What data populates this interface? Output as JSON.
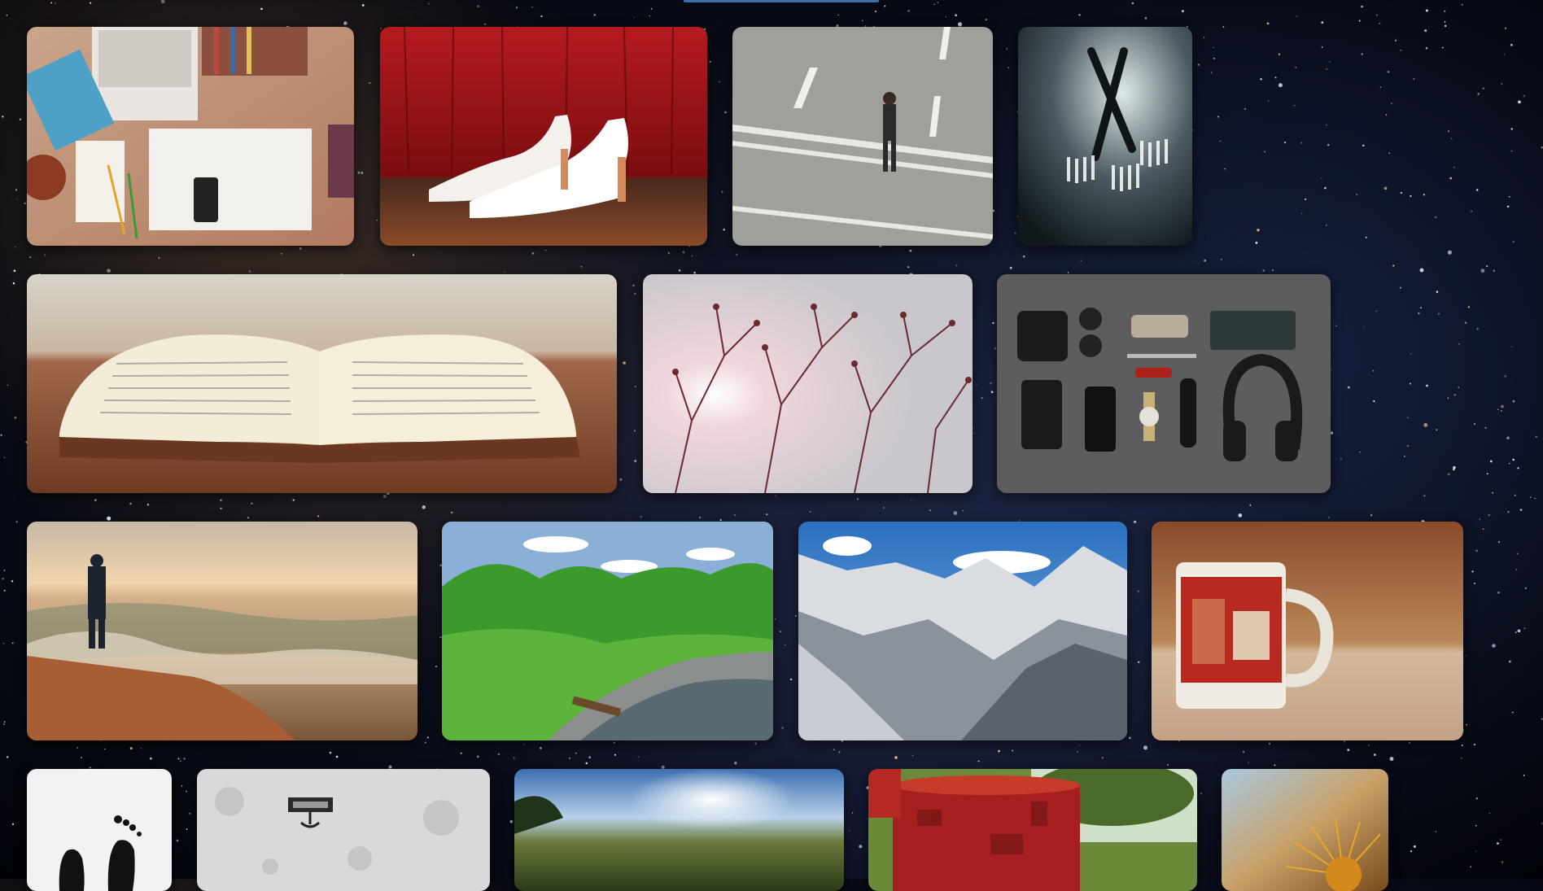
{
  "page": {
    "background": "starfield",
    "accent": "#3b6ea8"
  },
  "gallery": {
    "rows": [
      {
        "tiles": [
          {
            "id": "workspace",
            "subject": "workspace-desk-photo"
          },
          {
            "id": "heels",
            "subject": "white-heels-photo"
          },
          {
            "id": "road",
            "subject": "man-walking-road-photo"
          },
          {
            "id": "forks",
            "subject": "forks-photo"
          }
        ]
      },
      {
        "tiles": [
          {
            "id": "book",
            "subject": "open-book-photo"
          },
          {
            "id": "branches",
            "subject": "tree-branches-photo"
          },
          {
            "id": "essentials",
            "subject": "flatlay-essentials-photo"
          }
        ]
      },
      {
        "tiles": [
          {
            "id": "seashore",
            "subject": "man-by-sea-photo"
          },
          {
            "id": "forest",
            "subject": "green-forest-river-photo"
          },
          {
            "id": "mountains",
            "subject": "snowy-mountains-photo"
          },
          {
            "id": "mug",
            "subject": "vintage-mug-photo"
          }
        ]
      },
      {
        "tiles": [
          {
            "id": "feet",
            "subject": "feet-silhouette-photo"
          },
          {
            "id": "wall",
            "subject": "white-wall-plaque-photo"
          },
          {
            "id": "meadow",
            "subject": "meadow-sunlight-photo"
          },
          {
            "id": "barrel",
            "subject": "red-rusty-barrel-photo"
          },
          {
            "id": "plant",
            "subject": "spiky-plant-photo"
          }
        ]
      }
    ]
  }
}
